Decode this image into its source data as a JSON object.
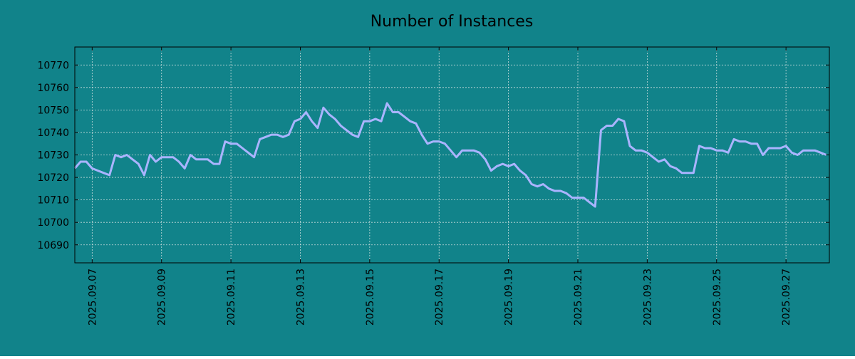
{
  "colors": {
    "background": "#11838a",
    "line": "#aab4ff",
    "axis": "#000000",
    "grid": "#c8dcdc",
    "text": "#000000"
  },
  "chart_data": {
    "type": "line",
    "title": "Number of Instances",
    "xlabel": "",
    "ylabel": "",
    "x_format": "date YYYY.MM.DD",
    "xlim": [
      "2025-09-06T12:00",
      "2025-09-28T06:00"
    ],
    "ylim": [
      10682,
      10778
    ],
    "grid": true,
    "legend": "none",
    "x_ticks": [
      "2025.09.07",
      "2025.09.09",
      "2025.09.11",
      "2025.09.13",
      "2025.09.15",
      "2025.09.17",
      "2025.09.19",
      "2025.09.21",
      "2025.09.23",
      "2025.09.25",
      "2025.09.27"
    ],
    "y_ticks": [
      "10690",
      "10700",
      "10710",
      "10720",
      "10730",
      "10740",
      "10750",
      "10760",
      "10770"
    ],
    "series": [
      {
        "x": [
          "2025-09-06T12:00",
          "2025-09-06T16:00",
          "2025-09-06T20:00",
          "2025-09-07T00:00",
          "2025-09-07T04:00",
          "2025-09-07T08:00",
          "2025-09-07T12:00",
          "2025-09-07T16:00",
          "2025-09-07T20:00",
          "2025-09-08T00:00",
          "2025-09-08T04:00",
          "2025-09-08T08:00",
          "2025-09-08T12:00",
          "2025-09-08T16:00",
          "2025-09-08T20:00",
          "2025-09-09T00:00",
          "2025-09-09T04:00",
          "2025-09-09T08:00",
          "2025-09-09T12:00",
          "2025-09-09T16:00",
          "2025-09-09T20:00",
          "2025-09-10T00:00",
          "2025-09-10T04:00",
          "2025-09-10T08:00",
          "2025-09-10T12:00",
          "2025-09-10T16:00",
          "2025-09-10T20:00",
          "2025-09-11T00:00",
          "2025-09-11T04:00",
          "2025-09-11T08:00",
          "2025-09-11T12:00",
          "2025-09-11T16:00",
          "2025-09-11T20:00",
          "2025-09-12T00:00",
          "2025-09-12T04:00",
          "2025-09-12T08:00",
          "2025-09-12T12:00",
          "2025-09-12T16:00",
          "2025-09-12T20:00",
          "2025-09-13T00:00",
          "2025-09-13T04:00",
          "2025-09-13T08:00",
          "2025-09-13T12:00",
          "2025-09-13T16:00",
          "2025-09-13T20:00",
          "2025-09-14T00:00",
          "2025-09-14T04:00",
          "2025-09-14T08:00",
          "2025-09-14T12:00",
          "2025-09-14T16:00",
          "2025-09-14T20:00",
          "2025-09-15T00:00",
          "2025-09-15T04:00",
          "2025-09-15T08:00",
          "2025-09-15T12:00",
          "2025-09-15T16:00",
          "2025-09-15T20:00",
          "2025-09-16T00:00",
          "2025-09-16T04:00",
          "2025-09-16T08:00",
          "2025-09-16T12:00",
          "2025-09-16T16:00",
          "2025-09-16T20:00",
          "2025-09-17T00:00",
          "2025-09-17T04:00",
          "2025-09-17T08:00",
          "2025-09-17T12:00",
          "2025-09-17T16:00",
          "2025-09-17T20:00",
          "2025-09-18T00:00",
          "2025-09-18T04:00",
          "2025-09-18T08:00",
          "2025-09-18T12:00",
          "2025-09-18T16:00",
          "2025-09-18T20:00",
          "2025-09-19T00:00",
          "2025-09-19T04:00",
          "2025-09-19T08:00",
          "2025-09-19T12:00",
          "2025-09-19T16:00",
          "2025-09-19T20:00",
          "2025-09-20T00:00",
          "2025-09-20T04:00",
          "2025-09-20T08:00",
          "2025-09-20T12:00",
          "2025-09-20T16:00",
          "2025-09-20T20:00",
          "2025-09-21T00:00",
          "2025-09-21T04:00",
          "2025-09-21T08:00",
          "2025-09-21T12:00",
          "2025-09-21T16:00",
          "2025-09-21T20:00",
          "2025-09-22T00:00",
          "2025-09-22T04:00",
          "2025-09-22T08:00",
          "2025-09-22T12:00",
          "2025-09-22T16:00",
          "2025-09-22T20:00",
          "2025-09-23T00:00",
          "2025-09-23T04:00",
          "2025-09-23T08:00",
          "2025-09-23T12:00",
          "2025-09-23T16:00",
          "2025-09-23T20:00",
          "2025-09-24T00:00",
          "2025-09-24T04:00",
          "2025-09-24T08:00",
          "2025-09-24T12:00",
          "2025-09-24T16:00",
          "2025-09-24T20:00",
          "2025-09-25T00:00",
          "2025-09-25T04:00",
          "2025-09-25T08:00",
          "2025-09-25T12:00",
          "2025-09-25T16:00",
          "2025-09-25T20:00",
          "2025-09-26T00:00",
          "2025-09-26T04:00",
          "2025-09-26T08:00",
          "2025-09-26T12:00",
          "2025-09-26T16:00",
          "2025-09-26T20:00",
          "2025-09-27T00:00",
          "2025-09-27T04:00",
          "2025-09-27T08:00",
          "2025-09-27T12:00",
          "2025-09-27T16:00",
          "2025-09-27T20:00",
          "2025-09-28T00:00",
          "2025-09-28T04:00"
        ],
        "values": [
          10724,
          10727,
          10727,
          10724,
          10723,
          10722,
          10721,
          10730,
          10729,
          10730,
          10728,
          10726,
          10721,
          10730,
          10727,
          10729,
          10729,
          10729,
          10727,
          10724,
          10730,
          10728,
          10728,
          10728,
          10726,
          10726,
          10736,
          10735,
          10735,
          10733,
          10731,
          10729,
          10737,
          10738,
          10739,
          10739,
          10738,
          10739,
          10745,
          10746,
          10749,
          10745,
          10742,
          10751,
          10748,
          10746,
          10743,
          10741,
          10739,
          10738,
          10745,
          10745,
          10746,
          10745,
          10753,
          10749,
          10749,
          10747,
          10745,
          10744,
          10739,
          10735,
          10736,
          10736,
          10735,
          10732,
          10729,
          10732,
          10732,
          10732,
          10731,
          10728,
          10723,
          10725,
          10726,
          10725,
          10726,
          10723,
          10721,
          10717,
          10716,
          10717,
          10715,
          10714,
          10714,
          10713,
          10711,
          10711,
          10711,
          10709,
          10707,
          10741,
          10743,
          10743,
          10746,
          10745,
          10734,
          10732,
          10732,
          10731,
          10729,
          10727,
          10728,
          10725,
          10724,
          10722,
          10722,
          10722,
          10734,
          10733,
          10733,
          10732,
          10732,
          10731,
          10737,
          10736,
          10736,
          10735,
          10735,
          10730,
          10733,
          10733,
          10733,
          10734,
          10731,
          10730,
          10732,
          10732,
          10732,
          10731,
          10730
        ]
      }
    ]
  }
}
